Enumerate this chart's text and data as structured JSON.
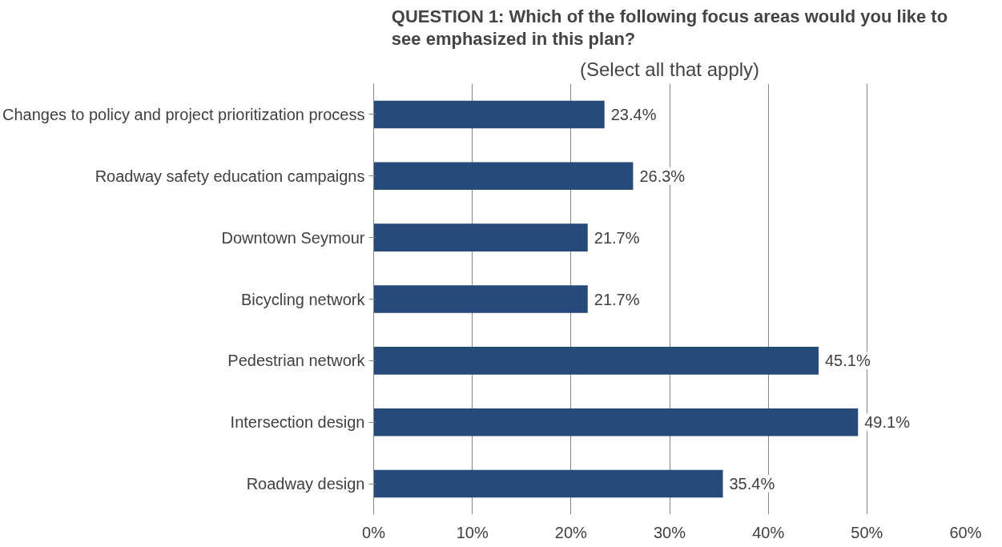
{
  "chart_data": {
    "type": "bar",
    "orientation": "horizontal",
    "title": "QUESTION 1: Which of the following focus areas would you like to see emphasized in this plan?",
    "subtitle": "(Select all that apply)",
    "categories": [
      "Changes to policy and project prioritization process",
      "Roadway safety education campaigns",
      "Downtown Seymour",
      "Bicycling network",
      "Pedestrian network",
      "Intersection design",
      "Roadway design"
    ],
    "values": [
      23.4,
      26.3,
      21.7,
      21.7,
      45.1,
      49.1,
      35.4
    ],
    "value_labels": [
      "23.4%",
      "26.3%",
      "21.7%",
      "21.7%",
      "45.1%",
      "49.1%",
      "35.4%"
    ],
    "color": "#264a7a",
    "xlim": [
      0,
      60
    ],
    "xticks": [
      {
        "value": 0,
        "label": "0%"
      },
      {
        "value": 10,
        "label": "10%"
      },
      {
        "value": 20,
        "label": "20%"
      },
      {
        "value": 30,
        "label": "30%"
      },
      {
        "value": 40,
        "label": "40%"
      },
      {
        "value": 50,
        "label": "50%"
      },
      {
        "value": 60,
        "label": "60%"
      }
    ],
    "grid": "x"
  }
}
